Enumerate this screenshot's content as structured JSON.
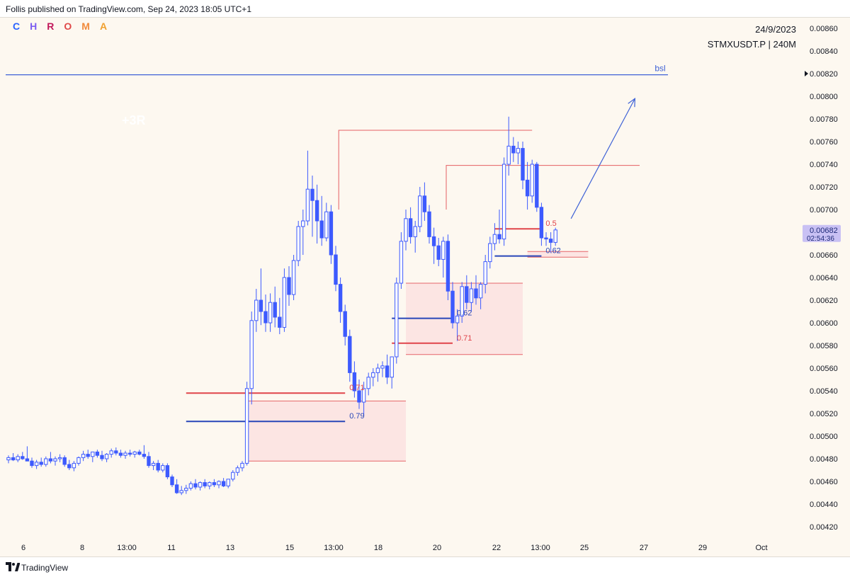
{
  "header": {
    "published": "Follis published on TradingView.com, Sep 24, 2023 18:05 UTC+1"
  },
  "footer": {
    "brand": "TradingView",
    "logo_icon": "tradingview-logo-icon"
  },
  "watermark": {
    "letters": [
      "C",
      "H",
      "R",
      "O",
      "M",
      "A"
    ],
    "colors": [
      "#2962ff",
      "#7b5cf0",
      "#c2185b",
      "#e04848",
      "#f08a3c",
      "#f0a030"
    ]
  },
  "info": {
    "date": "24/9/2023",
    "symbol_interval": "STMXUSDT.P | 240M"
  },
  "colors": {
    "bull": "#ffffff",
    "bear": "#3d5afe",
    "wick": "#3d5afe",
    "red": "#e0444a",
    "blue": "#2846b8",
    "zone": "#fbe2e0",
    "accent": "#3f62d6"
  },
  "chart_data": {
    "type": "candlestick",
    "symbol": "STMXUSDT.P",
    "interval": "240M",
    "ylim": [
      0.0041,
      0.0087
    ],
    "y_ticks": [
      "0.00860",
      "0.00840",
      "0.00820",
      "0.00800",
      "0.00780",
      "0.00760",
      "0.00740",
      "0.00720",
      "0.00700",
      "0.00680",
      "0.00660",
      "0.00640",
      "0.00620",
      "0.00600",
      "0.00580",
      "0.00560",
      "0.00540",
      "0.00520",
      "0.00500",
      "0.00480",
      "0.00460",
      "0.00440",
      "0.00420"
    ],
    "x_ticks": [
      "6",
      "8",
      "13:00",
      "11",
      "13",
      "15",
      "13:00",
      "18",
      "20",
      "22",
      "13:00",
      "25",
      "27",
      "29",
      "Oct"
    ],
    "last_price": {
      "value": "0.00682",
      "countdown": "02:54:36"
    },
    "arrow_marker_price": 0.0082,
    "candles": [
      [
        0.00479,
        0.00483,
        0.00476,
        0.00481
      ],
      [
        0.00481,
        0.00485,
        0.00478,
        0.00479
      ],
      [
        0.00479,
        0.00484,
        0.00477,
        0.00482
      ],
      [
        0.00482,
        0.00486,
        0.00479,
        0.0048
      ],
      [
        0.0048,
        0.00491,
        0.00478,
        0.00478
      ],
      [
        0.00478,
        0.00481,
        0.00472,
        0.00474
      ],
      [
        0.00474,
        0.00479,
        0.00471,
        0.00477
      ],
      [
        0.00477,
        0.00481,
        0.00473,
        0.00475
      ],
      [
        0.00475,
        0.00482,
        0.00473,
        0.0048
      ],
      [
        0.0048,
        0.00486,
        0.00476,
        0.00478
      ],
      [
        0.00478,
        0.00482,
        0.00474,
        0.0048
      ],
      [
        0.0048,
        0.00484,
        0.00477,
        0.00481
      ],
      [
        0.00481,
        0.00483,
        0.00473,
        0.00475
      ],
      [
        0.00475,
        0.00479,
        0.0047,
        0.00472
      ],
      [
        0.00472,
        0.00478,
        0.00469,
        0.00476
      ],
      [
        0.00476,
        0.00482,
        0.00474,
        0.00481
      ],
      [
        0.00481,
        0.00487,
        0.00478,
        0.00484
      ],
      [
        0.00484,
        0.00488,
        0.0048,
        0.00482
      ],
      [
        0.00482,
        0.00486,
        0.00477,
        0.00486
      ],
      [
        0.00486,
        0.00488,
        0.00481,
        0.00483
      ],
      [
        0.00483,
        0.00487,
        0.00478,
        0.0048
      ],
      [
        0.0048,
        0.00485,
        0.00477,
        0.00484
      ],
      [
        0.00484,
        0.00489,
        0.00481,
        0.00487
      ],
      [
        0.00487,
        0.0049,
        0.00483,
        0.00485
      ],
      [
        0.00485,
        0.00488,
        0.00481,
        0.00483
      ],
      [
        0.00483,
        0.00487,
        0.0048,
        0.00485
      ],
      [
        0.00485,
        0.00488,
        0.00482,
        0.00484
      ],
      [
        0.00484,
        0.00487,
        0.00481,
        0.00486
      ],
      [
        0.00486,
        0.00488,
        0.00483,
        0.00484
      ],
      [
        0.00484,
        0.00492,
        0.0048,
        0.00482
      ],
      [
        0.00482,
        0.00486,
        0.00472,
        0.00474
      ],
      [
        0.00474,
        0.00478,
        0.0047,
        0.00476
      ],
      [
        0.00476,
        0.00479,
        0.00468,
        0.0047
      ],
      [
        0.0047,
        0.00476,
        0.00468,
        0.00474
      ],
      [
        0.00474,
        0.00476,
        0.00462,
        0.00464
      ],
      [
        0.00464,
        0.00466,
        0.00455,
        0.00457
      ],
      [
        0.00457,
        0.00462,
        0.00449,
        0.0045
      ],
      [
        0.0045,
        0.00456,
        0.00448,
        0.00452
      ],
      [
        0.00452,
        0.00457,
        0.00449,
        0.00454
      ],
      [
        0.00454,
        0.0046,
        0.00452,
        0.00458
      ],
      [
        0.00458,
        0.00462,
        0.00453,
        0.00455
      ],
      [
        0.00455,
        0.0046,
        0.00452,
        0.00459
      ],
      [
        0.00459,
        0.00462,
        0.00454,
        0.00456
      ],
      [
        0.00456,
        0.0046,
        0.00453,
        0.00459
      ],
      [
        0.00459,
        0.00462,
        0.00455,
        0.00457
      ],
      [
        0.00457,
        0.00461,
        0.00454,
        0.0046
      ],
      [
        0.0046,
        0.00463,
        0.00455,
        0.00456
      ],
      [
        0.00456,
        0.00462,
        0.00454,
        0.00462
      ],
      [
        0.00462,
        0.0047,
        0.0046,
        0.00468
      ],
      [
        0.00468,
        0.00474,
        0.00465,
        0.00472
      ],
      [
        0.00472,
        0.00478,
        0.00469,
        0.00476
      ],
      [
        0.00476,
        0.00548,
        0.00474,
        0.00542
      ],
      [
        0.00542,
        0.0061,
        0.00528,
        0.00602
      ],
      [
        0.00602,
        0.0063,
        0.00592,
        0.0062
      ],
      [
        0.0062,
        0.00648,
        0.00598,
        0.0061
      ],
      [
        0.0061,
        0.00625,
        0.00592,
        0.006
      ],
      [
        0.006,
        0.00626,
        0.00592,
        0.00618
      ],
      [
        0.00618,
        0.00632,
        0.00596,
        0.00605
      ],
      [
        0.00605,
        0.00622,
        0.0059,
        0.00596
      ],
      [
        0.00596,
        0.00648,
        0.00592,
        0.0064
      ],
      [
        0.0064,
        0.0065,
        0.00615,
        0.00625
      ],
      [
        0.00625,
        0.0066,
        0.0062,
        0.00655
      ],
      [
        0.00655,
        0.0069,
        0.0065,
        0.00685
      ],
      [
        0.00685,
        0.007,
        0.0066,
        0.0069
      ],
      [
        0.0069,
        0.00752,
        0.00686,
        0.00718
      ],
      [
        0.00718,
        0.0073,
        0.00676,
        0.00708
      ],
      [
        0.00708,
        0.00722,
        0.0067,
        0.0069
      ],
      [
        0.0069,
        0.00712,
        0.00668,
        0.00675
      ],
      [
        0.00675,
        0.00706,
        0.00672,
        0.00698
      ],
      [
        0.00698,
        0.00704,
        0.00652,
        0.0066
      ],
      [
        0.0066,
        0.00668,
        0.00628,
        0.00634
      ],
      [
        0.00634,
        0.0064,
        0.006,
        0.0061
      ],
      [
        0.0061,
        0.00616,
        0.0058,
        0.00588
      ],
      [
        0.00588,
        0.00594,
        0.00548,
        0.00556
      ],
      [
        0.00556,
        0.00566,
        0.00534,
        0.0054
      ],
      [
        0.0054,
        0.0055,
        0.00524,
        0.0053
      ],
      [
        0.0053,
        0.00548,
        0.00518,
        0.00542
      ],
      [
        0.00542,
        0.00556,
        0.00536,
        0.00552
      ],
      [
        0.00552,
        0.0056,
        0.00544,
        0.00556
      ],
      [
        0.00556,
        0.00564,
        0.00548,
        0.0056
      ],
      [
        0.0056,
        0.00566,
        0.00552,
        0.00562
      ],
      [
        0.00562,
        0.00572,
        0.00546,
        0.00552
      ],
      [
        0.00552,
        0.00568,
        0.00542,
        0.0057
      ],
      [
        0.0057,
        0.0064,
        0.00564,
        0.00635
      ],
      [
        0.00635,
        0.0068,
        0.0063,
        0.00672
      ],
      [
        0.00672,
        0.007,
        0.00664,
        0.00692
      ],
      [
        0.00692,
        0.00702,
        0.0067,
        0.00676
      ],
      [
        0.00676,
        0.0069,
        0.00662,
        0.00685
      ],
      [
        0.00685,
        0.0072,
        0.0068,
        0.00712
      ],
      [
        0.00712,
        0.00724,
        0.0069,
        0.00698
      ],
      [
        0.00698,
        0.00704,
        0.0067,
        0.00676
      ],
      [
        0.00676,
        0.00684,
        0.00652,
        0.00668
      ],
      [
        0.00668,
        0.00675,
        0.0065,
        0.00656
      ],
      [
        0.00656,
        0.00676,
        0.0064,
        0.00672
      ],
      [
        0.00672,
        0.00678,
        0.0062,
        0.00628
      ],
      [
        0.00628,
        0.00636,
        0.00595,
        0.006
      ],
      [
        0.006,
        0.00612,
        0.00584,
        0.00606
      ],
      [
        0.00606,
        0.00636,
        0.006,
        0.00632
      ],
      [
        0.00632,
        0.00642,
        0.00612,
        0.00618
      ],
      [
        0.00618,
        0.00636,
        0.0061,
        0.0063
      ],
      [
        0.0063,
        0.00642,
        0.00616,
        0.00622
      ],
      [
        0.00622,
        0.00636,
        0.00612,
        0.00634
      ],
      [
        0.00634,
        0.0066,
        0.00626,
        0.00654
      ],
      [
        0.00654,
        0.00676,
        0.00648,
        0.0067
      ],
      [
        0.0067,
        0.00688,
        0.00664,
        0.00678
      ],
      [
        0.00678,
        0.007,
        0.0067,
        0.00674
      ],
      [
        0.00674,
        0.00746,
        0.00668,
        0.0074
      ],
      [
        0.0074,
        0.00782,
        0.0073,
        0.00756
      ],
      [
        0.00756,
        0.00764,
        0.00742,
        0.0075
      ],
      [
        0.0075,
        0.0076,
        0.0074,
        0.00754
      ],
      [
        0.00754,
        0.0076,
        0.00718,
        0.00726
      ],
      [
        0.00726,
        0.00742,
        0.007,
        0.00712
      ],
      [
        0.00712,
        0.00744,
        0.00706,
        0.0074
      ],
      [
        0.0074,
        0.00742,
        0.00698,
        0.00702
      ],
      [
        0.00702,
        0.00706,
        0.00668,
        0.00675
      ],
      [
        0.00675,
        0.0068,
        0.00668,
        0.00674
      ],
      [
        0.00674,
        0.0068,
        0.00662,
        0.00671
      ],
      [
        0.00671,
        0.00684,
        0.00668,
        0.00682
      ]
    ],
    "zones": [
      {
        "from_index": 51,
        "to_index": 85,
        "top": 0.00531,
        "bottom": 0.00478
      },
      {
        "from_index": 85,
        "to_index": 110,
        "top": 0.00635,
        "bottom": 0.00572
      },
      {
        "from_index": 111,
        "to_index": 124,
        "top": 0.00663,
        "bottom": 0.00658
      }
    ],
    "levels": [
      {
        "label": "0.71",
        "price": 0.00538,
        "color": "red",
        "from_index": 38,
        "to_index": 72
      },
      {
        "label": "0.79",
        "price": 0.00513,
        "color": "blue",
        "from_index": 38,
        "to_index": 72
      },
      {
        "label": "0.62",
        "price": 0.00604,
        "color": "blue",
        "from_index": 82,
        "to_index": 95
      },
      {
        "label": "0.71",
        "price": 0.00582,
        "color": "red",
        "from_index": 82,
        "to_index": 95
      },
      {
        "label": "0.5",
        "price": 0.00683,
        "color": "red",
        "from_index": 104,
        "to_index": 114
      },
      {
        "label": "0.62",
        "price": 0.00659,
        "color": "blue",
        "from_index": 104,
        "to_index": 114
      }
    ],
    "swing_highs": [
      {
        "index": 72,
        "from_index": 71,
        "price": 0.0077
      },
      {
        "index": 95,
        "from_index": 94,
        "price": 0.00739
      }
    ],
    "bsl": {
      "label": "bsl",
      "price": 0.00819
    },
    "annotation": {
      "text": "+3R"
    },
    "projection": {
      "from_price": 0.00692,
      "to_price": 0.00798,
      "to_index_offset": 17
    }
  }
}
